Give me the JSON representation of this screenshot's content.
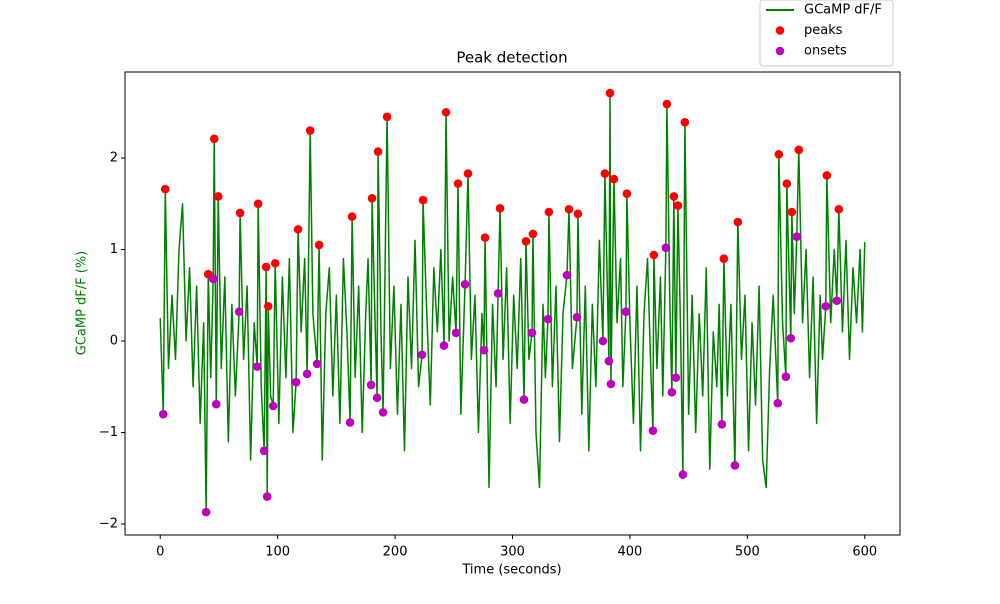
{
  "chart_data": {
    "type": "line",
    "title": "Peak detection",
    "xlabel": "Time (seconds)",
    "ylabel": "GCaMP dF/F (%)",
    "xlim": [
      -30,
      630
    ],
    "ylim": [
      -2.12,
      2.94
    ],
    "xticks": [
      0,
      100,
      200,
      300,
      400,
      500,
      600
    ],
    "yticks": [
      {
        "value": -2,
        "label": "−2"
      },
      {
        "value": -1,
        "label": "−1"
      },
      0,
      1,
      2
    ],
    "legend": "upper right",
    "series": [
      {
        "name": "GCaMP dF/F",
        "type": "line",
        "color": "#008000",
        "x": [
          0,
          2.6,
          4.3,
          7,
          10,
          13,
          16,
          19,
          22,
          25,
          28,
          31,
          34,
          37,
          39.1,
          40.9,
          43,
          45.1,
          46,
          47.7,
          49.4,
          52,
          55,
          58,
          61,
          64,
          67.2,
          68,
          71,
          74,
          77,
          80,
          82.6,
          83.4,
          86,
          88.5,
          90.2,
          91.1,
          92,
          94,
          96.2,
          97.9,
          101,
          104,
          107,
          110,
          113,
          115.7,
          117.4,
          120,
          123,
          125.1,
          127.7,
          130,
          133.6,
          135.3,
          138,
          141,
          144,
          147,
          150,
          153,
          156,
          159,
          161.7,
          163.4,
          166,
          169,
          172,
          175,
          177,
          179.6,
          180.4,
          183,
          184.7,
          185.5,
          188,
          189.8,
          193.2,
          196,
          199,
          202,
          205,
          208,
          211,
          214,
          217,
          220,
          223,
          223.8,
          227,
          230,
          233,
          236,
          239,
          241.7,
          243.4,
          246,
          249,
          251.9,
          253.6,
          256,
          259.6,
          262.1,
          265,
          268,
          271,
          274,
          275.7,
          276.6,
          280,
          283,
          286,
          287.7,
          289.4,
          292,
          295,
          298,
          301,
          304,
          307,
          309.8,
          311.5,
          314,
          316.6,
          317.4,
          320,
          323,
          326,
          328,
          330.2,
          331,
          334,
          337,
          340,
          343,
          346.4,
          348.1,
          351,
          354.9,
          355.7,
          359,
          362,
          365,
          368,
          371,
          374,
          377,
          378.7,
          382.1,
          383,
          383.8,
          386.4,
          389,
          392,
          394,
          396.6,
          397.4,
          400,
          403,
          406,
          409,
          412,
          415,
          418,
          419.6,
          420.4,
          423,
          426,
          428,
          430.6,
          431.5,
          434,
          435.7,
          437.4,
          439.1,
          440.9,
          443,
          445.1,
          446.8,
          450,
          453,
          456,
          459,
          462,
          465,
          468,
          471,
          474,
          476,
          478.3,
          480,
          483,
          486,
          489.4,
          491.9,
          495,
          498,
          501,
          504,
          507,
          510,
          513,
          516,
          519,
          522,
          525.9,
          526.8,
          530,
          532.8,
          533.6,
          537,
          537.9,
          540,
          542.1,
          543.8,
          547,
          550,
          553,
          556,
          559,
          562,
          564,
          566.8,
          567.7,
          571,
          574,
          576.2,
          577.9,
          581,
          584,
          587,
          590,
          593,
          596,
          598,
          600
        ],
        "values": [
          0.25,
          -0.8,
          1.66,
          -0.3,
          0.5,
          -0.2,
          1.0,
          1.5,
          0.0,
          0.8,
          -0.5,
          0.6,
          -0.9,
          0.2,
          -1.87,
          0.73,
          -0.4,
          0.68,
          2.21,
          -0.69,
          1.58,
          -0.3,
          0.7,
          -1.1,
          0.4,
          -0.6,
          0.32,
          1.4,
          -0.2,
          0.6,
          -1.3,
          0.2,
          -0.28,
          1.5,
          -0.5,
          -1.2,
          0.81,
          -1.7,
          0.38,
          -0.6,
          -0.71,
          0.85,
          -0.9,
          0.7,
          -0.4,
          0.9,
          -1.0,
          -0.45,
          1.22,
          0.1,
          0.9,
          -0.36,
          2.3,
          0.3,
          -0.25,
          1.05,
          -1.3,
          0.3,
          0.8,
          -0.6,
          0.5,
          -0.9,
          0.9,
          0.1,
          -0.89,
          1.36,
          -0.4,
          0.6,
          -1.0,
          0.3,
          0.9,
          -0.48,
          1.56,
          0.2,
          -0.62,
          2.07,
          0.1,
          -0.78,
          2.45,
          -0.3,
          0.6,
          -0.8,
          0.4,
          -1.2,
          0.7,
          -0.3,
          1.1,
          -0.5,
          -0.15,
          1.54,
          0.3,
          -0.7,
          0.8,
          0.1,
          1.0,
          -0.05,
          2.5,
          0.0,
          0.7,
          0.09,
          1.72,
          -0.8,
          0.62,
          1.83,
          -0.2,
          0.5,
          -1.0,
          0.3,
          -0.1,
          1.13,
          -1.6,
          0.4,
          -0.5,
          0.52,
          1.45,
          -0.2,
          0.8,
          -0.9,
          0.5,
          -0.3,
          0.9,
          -0.64,
          1.09,
          -0.2,
          0.09,
          1.17,
          -1.0,
          -1.6,
          0.4,
          -0.4,
          0.24,
          1.41,
          -0.5,
          0.6,
          -1.1,
          0.3,
          0.72,
          1.44,
          -0.3,
          0.26,
          1.39,
          -0.8,
          0.6,
          -1.2,
          0.4,
          -0.5,
          1.1,
          0.0,
          1.83,
          -0.22,
          2.71,
          -0.47,
          1.77,
          0.2,
          0.9,
          -0.5,
          0.32,
          1.61,
          0.2,
          -0.9,
          0.6,
          -1.2,
          0.3,
          0.9,
          -0.4,
          -0.98,
          0.94,
          -0.3,
          0.7,
          -0.6,
          1.02,
          2.59,
          0.4,
          -0.56,
          1.58,
          -0.4,
          1.48,
          0.2,
          -1.46,
          2.39,
          -0.8,
          0.5,
          -1.0,
          0.3,
          -0.6,
          0.8,
          -1.4,
          0.1,
          -0.5,
          0.4,
          -0.91,
          0.9,
          -0.6,
          0.4,
          -1.36,
          1.3,
          -0.2,
          0.5,
          -1.2,
          0.2,
          -0.7,
          0.6,
          -1.3,
          -1.6,
          -0.3,
          0.5,
          -0.68,
          2.04,
          0.2,
          -0.39,
          1.72,
          0.03,
          1.41,
          0.3,
          1.14,
          2.09,
          0.2,
          1.0,
          -0.4,
          0.7,
          -0.9,
          0.5,
          -0.2,
          0.38,
          1.81,
          0.2,
          1.0,
          0.44,
          1.44,
          0.1,
          1.1,
          -0.2,
          0.8,
          0.2,
          1.0,
          0.1,
          1.08
        ]
      },
      {
        "name": "peaks",
        "type": "scatter",
        "color": "#ff0000",
        "x": [
          4.3,
          40.9,
          46,
          49.4,
          68,
          83.4,
          90.2,
          92,
          97.9,
          117.4,
          127.7,
          135.3,
          163.4,
          180.4,
          185.5,
          193.2,
          223.8,
          243.4,
          253.6,
          262.1,
          276.6,
          289.4,
          311.5,
          317.4,
          331,
          348.1,
          355.7,
          378.7,
          383,
          386.4,
          397.4,
          420.4,
          431.5,
          437.4,
          440.9,
          446.8,
          480,
          491.9,
          526.8,
          533.6,
          537.9,
          543.8,
          567.7,
          577.9
        ],
        "values": [
          1.66,
          0.73,
          2.21,
          1.58,
          1.4,
          1.5,
          0.81,
          0.38,
          0.85,
          1.22,
          2.3,
          1.05,
          1.36,
          1.56,
          2.07,
          2.45,
          1.54,
          2.5,
          1.72,
          1.83,
          1.13,
          1.45,
          1.09,
          1.17,
          1.41,
          1.44,
          1.39,
          1.83,
          2.71,
          1.77,
          1.61,
          0.94,
          2.59,
          1.58,
          1.48,
          2.39,
          0.9,
          1.3,
          2.04,
          1.72,
          1.41,
          2.09,
          1.81,
          1.44
        ]
      },
      {
        "name": "onsets",
        "type": "scatter",
        "color": "#bf00bf",
        "x": [
          2.6,
          39.1,
          45.1,
          47.7,
          67.2,
          82.6,
          88.5,
          91.1,
          96.2,
          115.7,
          125.1,
          133.6,
          161.7,
          179.6,
          184.7,
          189.8,
          223,
          241.7,
          251.9,
          259.6,
          275.7,
          287.7,
          309.8,
          316.6,
          330.2,
          346.4,
          354.9,
          377,
          382.1,
          383.8,
          396.6,
          419.6,
          430.6,
          435.7,
          439.1,
          445.1,
          478.3,
          489.4,
          525.9,
          532.8,
          537,
          542.1,
          566.8,
          576.2
        ],
        "values": [
          -0.8,
          -1.87,
          0.68,
          -0.69,
          0.32,
          -0.28,
          -1.2,
          -1.7,
          -0.71,
          -0.45,
          -0.36,
          -0.25,
          -0.89,
          -0.48,
          -0.62,
          -0.78,
          -0.15,
          -0.05,
          0.09,
          0.62,
          -0.1,
          0.52,
          -0.64,
          0.09,
          0.24,
          0.72,
          0.26,
          0.0,
          -0.22,
          -0.47,
          0.32,
          -0.98,
          1.02,
          -0.56,
          -0.4,
          -1.46,
          -0.91,
          -1.36,
          -0.68,
          -0.39,
          0.03,
          1.14,
          0.38,
          0.44
        ]
      }
    ]
  }
}
